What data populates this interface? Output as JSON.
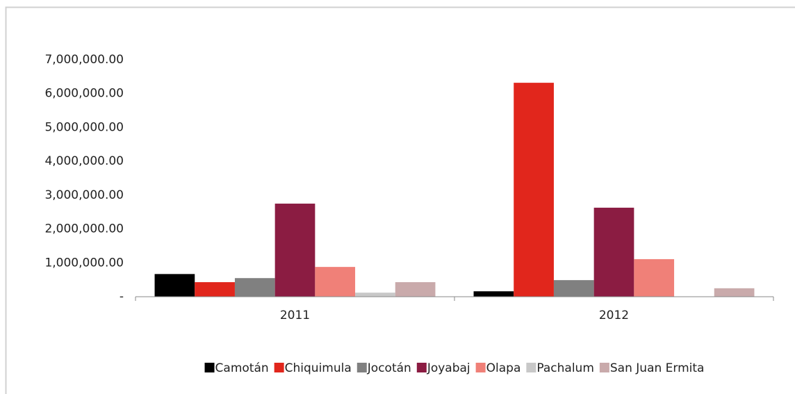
{
  "chart_data": {
    "type": "bar",
    "categories": [
      "2011",
      "2012"
    ],
    "series": [
      {
        "name": "Camotán",
        "color": "#000000",
        "values": [
          670000,
          160000
        ]
      },
      {
        "name": "Chiquimula",
        "color": "#e1261c",
        "values": [
          430000,
          6320000
        ]
      },
      {
        "name": "Jocotán",
        "color": "#808080",
        "values": [
          550000,
          490000
        ]
      },
      {
        "name": "Joyabaj",
        "color": "#8b1c42",
        "values": [
          2750000,
          2630000
        ]
      },
      {
        "name": "Olapa",
        "color": "#f08078",
        "values": [
          880000,
          1110000
        ]
      },
      {
        "name": "Pachalum",
        "color": "#c8c8c8",
        "values": [
          120000,
          0
        ]
      },
      {
        "name": "San Juan Ermita",
        "color": "#c9aaab",
        "values": [
          430000,
          250000
        ]
      }
    ],
    "ylim": [
      0,
      7000000
    ],
    "yticks": [
      {
        "value": 0,
        "label": "-"
      },
      {
        "value": 1000000,
        "label": "1,000,000.00"
      },
      {
        "value": 2000000,
        "label": "2,000,000.00"
      },
      {
        "value": 3000000,
        "label": "3,000,000.00"
      },
      {
        "value": 4000000,
        "label": "4,000,000.00"
      },
      {
        "value": 5000000,
        "label": "5,000,000.00"
      },
      {
        "value": 6000000,
        "label": "6,000,000.00"
      },
      {
        "value": 7000000,
        "label": "7,000,000.00"
      }
    ],
    "grid": false,
    "legend": "bottom"
  }
}
